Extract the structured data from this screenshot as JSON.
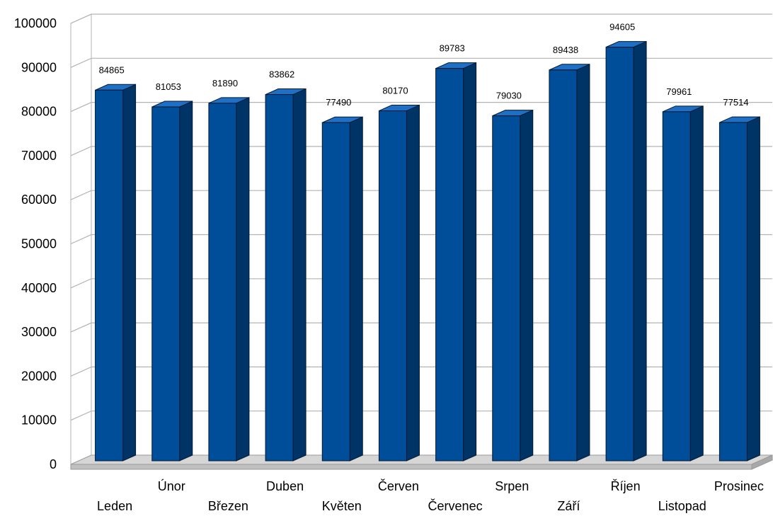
{
  "chart_data": {
    "type": "bar",
    "categories": [
      "Leden",
      "Únor",
      "Březen",
      "Duben",
      "Květen",
      "Červen",
      "Červenec",
      "Srpen",
      "Září",
      "Říjen",
      "Listopad",
      "Prosinec"
    ],
    "values": [
      84865,
      81053,
      81890,
      83862,
      77490,
      80170,
      89783,
      79030,
      89438,
      94605,
      79961,
      77514
    ],
    "title": "",
    "xlabel": "",
    "ylabel": "",
    "ylim": [
      0,
      100000
    ],
    "ytick_labels": [
      "0",
      "10000",
      "20000",
      "30000",
      "40000",
      "50000",
      "60000",
      "70000",
      "80000",
      "90000",
      "100000"
    ],
    "grid": true,
    "legend": "none",
    "data_labels": true,
    "three_d": true,
    "colors": {
      "bar_front": "#004d99",
      "bar_side": "#003366",
      "bar_top": "#1f6fc4",
      "floor": "#c0c0c0",
      "grid": "#b3b3b3"
    }
  }
}
